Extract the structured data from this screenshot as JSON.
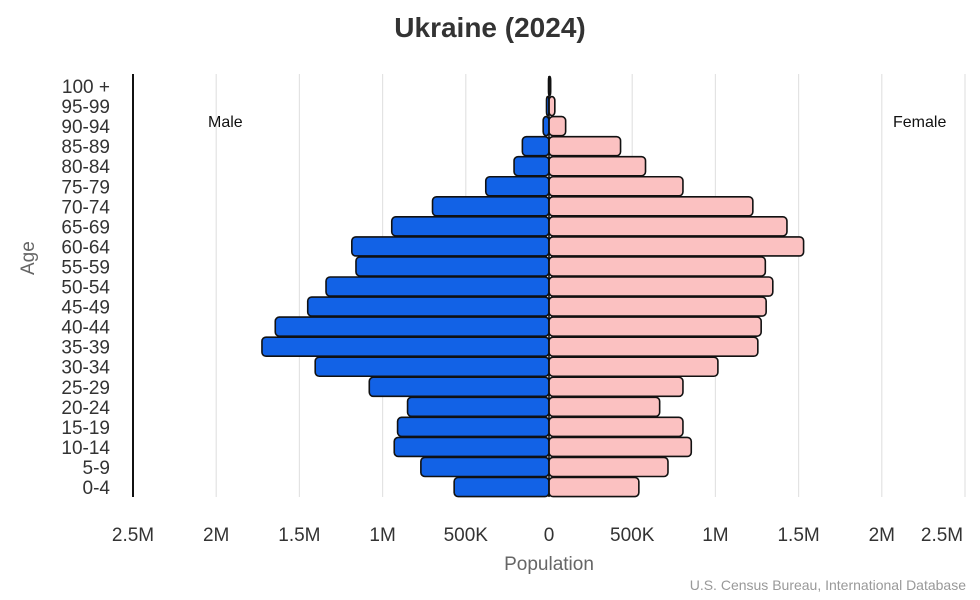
{
  "title": "Ukraine (2024)",
  "source": "U.S. Census Bureau, International Database",
  "labels": {
    "male": "Male",
    "female": "Female"
  },
  "colors": {
    "male": "#1262e6",
    "female": "#fbc1c1",
    "outline": "#111111",
    "grid": "#e3e3e3",
    "axis": "#111111"
  },
  "chart_data": {
    "type": "bar",
    "subtype": "population-pyramid",
    "title": "Ukraine (2024)",
    "xlabel": "Population",
    "ylabel": "Age",
    "categories": [
      "100 +",
      "95-99",
      "90-94",
      "85-89",
      "80-84",
      "75-79",
      "70-74",
      "65-69",
      "60-64",
      "55-59",
      "50-54",
      "45-49",
      "40-44",
      "35-39",
      "30-34",
      "25-29",
      "20-24",
      "15-19",
      "10-14",
      "5-9",
      "0-4"
    ],
    "series": [
      {
        "name": "Male",
        "side": "left",
        "color": "#1262e6",
        "values": [
          3000,
          15000,
          35000,
          160000,
          210000,
          380000,
          700000,
          945000,
          1185000,
          1160000,
          1340000,
          1450000,
          1645000,
          1725000,
          1405000,
          1080000,
          850000,
          910000,
          930000,
          770000,
          570000
        ]
      },
      {
        "name": "Female",
        "side": "right",
        "color": "#fbc1c1",
        "values": [
          10000,
          35000,
          100000,
          430000,
          580000,
          805000,
          1225000,
          1430000,
          1530000,
          1300000,
          1345000,
          1305000,
          1275000,
          1255000,
          1015000,
          805000,
          665000,
          805000,
          855000,
          715000,
          540000
        ]
      }
    ],
    "xticks": [
      "2.5M",
      "2M",
      "1.5M",
      "1M",
      "500K",
      "0",
      "500K",
      "1M",
      "1.5M",
      "2M",
      "2.5M"
    ],
    "xtick_values": [
      -2500000,
      -2000000,
      -1500000,
      -1000000,
      -500000,
      0,
      500000,
      1000000,
      1500000,
      2000000,
      2500000
    ],
    "xlim": [
      -2500000,
      2500000
    ],
    "grid": true,
    "legend": "inline labels (Male left, Female right)"
  }
}
